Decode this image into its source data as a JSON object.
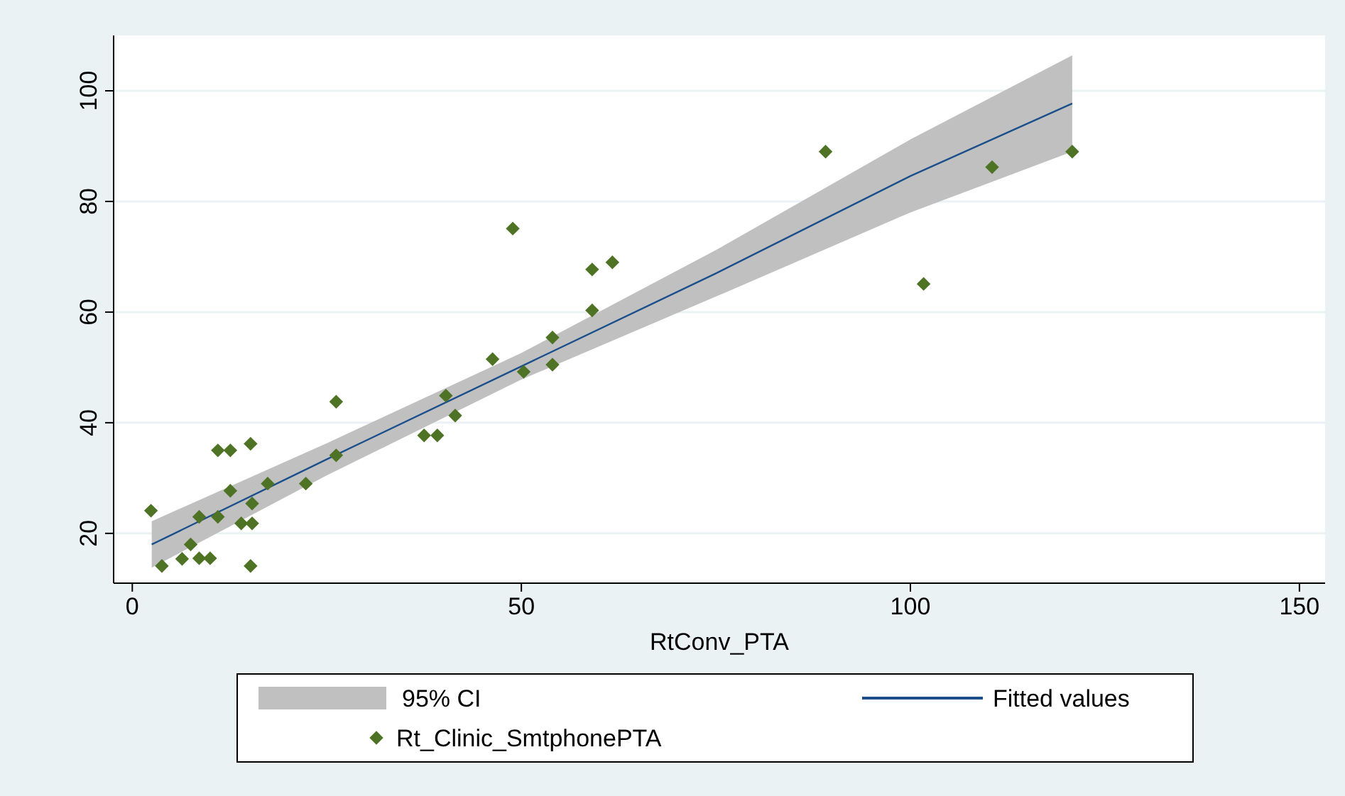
{
  "chart_data": {
    "type": "scatter",
    "xlabel": "RtConv_PTA",
    "xlim": [
      -2.4,
      153.3
    ],
    "xticks": [
      0,
      50,
      100,
      150
    ],
    "ylim": [
      11,
      110
    ],
    "yticks": [
      20,
      40,
      60,
      80,
      100
    ],
    "grid": "y",
    "legend": "bottom",
    "annotations": [
      "95% CI"
    ],
    "series": [
      {
        "name": "Fitted values",
        "type": "line",
        "marker": "none",
        "color": "#1a4f8b",
        "x": [
          2.5,
          25,
          50,
          75,
          100,
          120.8
        ],
        "values": [
          18,
          33.4,
          50.2,
          67,
          84.6,
          97.7
        ],
        "lower": [
          13.8,
          30.5,
          47.8,
          62.8,
          78,
          89
        ],
        "upper": [
          22.2,
          36.3,
          52.6,
          71.2,
          91.2,
          106.4
        ]
      },
      {
        "name": "Rt_Clinic_SmtphonePTA",
        "marker": "diamond",
        "color": "#4f7325",
        "x": [
          2.4,
          3.8,
          6.4,
          7.5,
          8.6,
          10,
          8.6,
          11,
          11,
          12.6,
          12.6,
          14,
          15.4,
          15.4,
          15.2,
          15.2,
          17.4,
          22.3,
          26.2,
          26.2,
          37.5,
          39.2,
          40.3,
          41.5,
          46.3,
          50.3,
          48.9,
          54,
          54,
          59.1,
          59.1,
          61.7,
          89.1,
          101.7,
          110.5,
          120.8
        ],
        "values": [
          24.1,
          14.1,
          15.4,
          18,
          15.5,
          15.5,
          23,
          23,
          35,
          35,
          27.7,
          21.8,
          21.8,
          25.4,
          36.2,
          14.1,
          29,
          29,
          34.1,
          43.8,
          37.7,
          37.7,
          44.9,
          41.3,
          51.5,
          49.2,
          75.1,
          55.4,
          50.5,
          60.3,
          67.7,
          69,
          89,
          65.1,
          86.2,
          89
        ]
      }
    ]
  }
}
